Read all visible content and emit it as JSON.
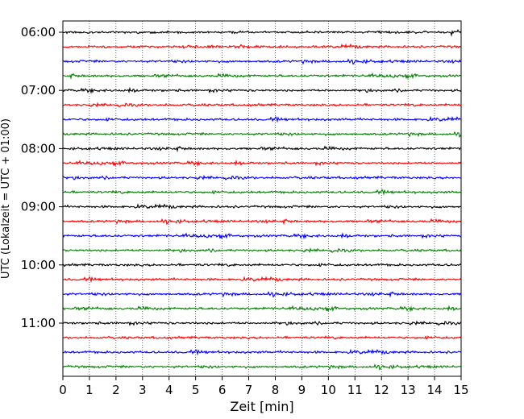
{
  "chart_data": {
    "type": "line",
    "chart_style": "seismogram-helicorder",
    "title": "",
    "xlabel": "Zeit  [min]",
    "ylabel": "UTC (Lokalzeit = UTC + 01:00)",
    "xlim": [
      0,
      15
    ],
    "x_ticks": [
      "0",
      "1",
      "2",
      "3",
      "4",
      "5",
      "6",
      "7",
      "8",
      "9",
      "10",
      "11",
      "12",
      "13",
      "14",
      "15"
    ],
    "y_ticks": [
      "06:00",
      "07:00",
      "08:00",
      "09:00",
      "10:00",
      "11:00"
    ],
    "grid": "vertical dotted lines at each minute",
    "trace_interval_minutes": 15,
    "start_time": "06:00",
    "end_time": "11:45",
    "trace_colors": [
      "#000000",
      "#ff0000",
      "#0000ff",
      "#008000"
    ],
    "trace_count": 24,
    "legend": "none"
  }
}
